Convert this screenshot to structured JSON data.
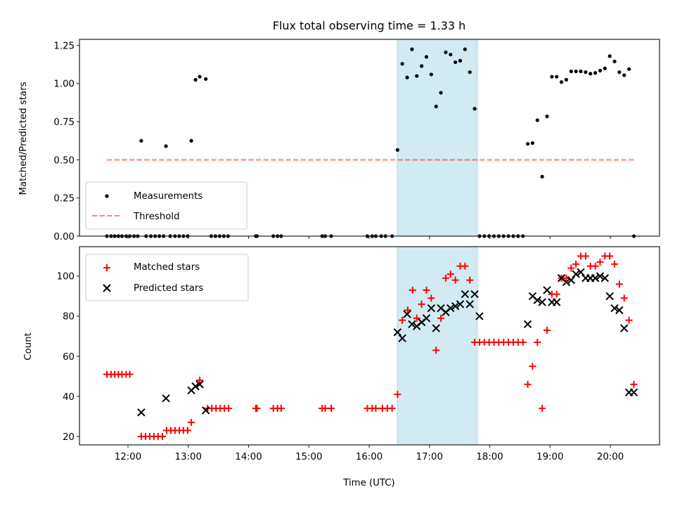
{
  "chart_data": [
    {
      "type": "scatter",
      "panel": "top",
      "title": "Flux total observing time = 1.33 h",
      "xlabel": "",
      "ylabel": "Matched/Predicted stars",
      "xlim": [
        11.195,
        20.816
      ],
      "ylim": [
        0,
        1.29
      ],
      "yticks": [
        0.0,
        0.25,
        0.5,
        0.75,
        1.0,
        1.25
      ],
      "ytick_labels": [
        "0.00",
        "0.25",
        "0.50",
        "0.75",
        "1.00",
        "1.25"
      ],
      "xticks": [
        12,
        13,
        14,
        15,
        16,
        17,
        18,
        19,
        20
      ],
      "grid": false,
      "legend_position": "lower-left",
      "shaded_region": {
        "x0": 16.466,
        "x1": 17.796,
        "color": "#add8e6"
      },
      "threshold": {
        "name": "Threshold",
        "value": 0.5,
        "x0": 11.65,
        "x1": 20.4,
        "color": "#ff0000",
        "style": "dashed"
      },
      "series": [
        {
          "name": "Measurements",
          "color": "#000000",
          "marker": "dot",
          "x": [
            11.65,
            11.72,
            11.78,
            11.84,
            11.9,
            11.97,
            12.03,
            12.1,
            12.16,
            12.22,
            12.3,
            12.38,
            12.45,
            12.52,
            12.59,
            12.63,
            12.7,
            12.78,
            12.85,
            12.92,
            12.99,
            13.05,
            13.12,
            13.19,
            13.29,
            13.38,
            13.45,
            13.52,
            13.59,
            13.66,
            14.12,
            14.14,
            14.41,
            14.48,
            14.54,
            15.22,
            15.27,
            15.37,
            15.97,
            16.05,
            16.11,
            16.2,
            16.27,
            16.38,
            16.47,
            16.55,
            16.63,
            16.71,
            16.79,
            16.87,
            16.95,
            17.03,
            17.11,
            17.19,
            17.27,
            17.35,
            17.43,
            17.51,
            17.59,
            17.67,
            17.75,
            17.83,
            17.91,
            17.99,
            18.07,
            18.15,
            18.23,
            18.31,
            18.39,
            18.47,
            18.55,
            18.63,
            18.71,
            18.79,
            18.87,
            18.95,
            19.03,
            19.11,
            19.19,
            19.27,
            19.35,
            19.43,
            19.51,
            19.59,
            19.67,
            19.75,
            19.83,
            19.91,
            19.99,
            20.07,
            20.15,
            20.23,
            20.31,
            20.39
          ],
          "y": [
            0,
            0,
            0,
            0,
            0,
            0,
            0,
            0,
            0,
            0.625,
            0,
            0,
            0,
            0,
            0,
            0.59,
            0,
            0,
            0,
            0,
            0,
            0.625,
            1.025,
            1.045,
            1.03,
            0,
            0,
            0,
            0,
            0,
            0,
            0,
            0,
            0,
            0,
            0,
            0,
            0,
            0,
            0,
            0,
            0,
            0,
            0,
            0.565,
            1.13,
            1.04,
            1.225,
            1.05,
            1.115,
            1.175,
            1.06,
            0.85,
            0.94,
            1.205,
            1.19,
            1.14,
            1.15,
            1.225,
            1.075,
            0.835,
            0,
            0,
            0,
            0,
            0,
            0,
            0,
            0,
            0,
            0,
            0.605,
            0.61,
            0.76,
            0.39,
            0.785,
            1.045,
            1.045,
            1.01,
            1.025,
            1.08,
            1.08,
            1.08,
            1.075,
            1.065,
            1.07,
            1.085,
            1.1,
            1.18,
            1.145,
            1.075,
            1.055,
            1.095,
            0
          ]
        }
      ]
    },
    {
      "type": "scatter",
      "panel": "bottom",
      "title": "",
      "xlabel": "Time (UTC)",
      "ylabel": "Count",
      "xlim": [
        11.195,
        20.816
      ],
      "ylim": [
        15.8,
        114.7
      ],
      "yticks": [
        20,
        40,
        60,
        80,
        100
      ],
      "ytick_labels": [
        "20",
        "40",
        "60",
        "80",
        "100"
      ],
      "xticks": [
        12,
        13,
        14,
        15,
        16,
        17,
        18,
        19,
        20
      ],
      "xtick_labels": [
        "12:00",
        "13:00",
        "14:00",
        "15:00",
        "16:00",
        "17:00",
        "18:00",
        "19:00",
        "20:00"
      ],
      "grid": false,
      "legend_position": "upper-left",
      "shaded_region": {
        "x0": 16.466,
        "x1": 17.796,
        "color": "#add8e6"
      },
      "series": [
        {
          "name": "Matched stars",
          "color": "#ff0000",
          "marker": "plus",
          "x": [
            11.65,
            11.72,
            11.78,
            11.84,
            11.9,
            11.97,
            12.03,
            12.22,
            12.29,
            12.36,
            12.43,
            12.5,
            12.57,
            12.64,
            12.71,
            12.78,
            12.85,
            12.92,
            12.99,
            13.05,
            13.19,
            13.32,
            13.39,
            13.46,
            13.53,
            13.6,
            13.67,
            14.12,
            14.14,
            14.41,
            14.48,
            14.54,
            15.22,
            15.27,
            15.37,
            15.97,
            16.05,
            16.11,
            16.22,
            16.3,
            16.38,
            16.47,
            16.55,
            16.64,
            16.72,
            16.79,
            16.87,
            16.95,
            17.03,
            17.11,
            17.19,
            17.27,
            17.35,
            17.43,
            17.51,
            17.59,
            17.67,
            17.75,
            17.83,
            17.91,
            17.99,
            18.07,
            18.15,
            18.23,
            18.31,
            18.39,
            18.47,
            18.55,
            18.63,
            18.71,
            18.79,
            18.87,
            18.95,
            19.03,
            19.11,
            19.19,
            19.27,
            19.35,
            19.43,
            19.51,
            19.59,
            19.67,
            19.75,
            19.83,
            19.91,
            19.99,
            20.07,
            20.15,
            20.23,
            20.31,
            20.39
          ],
          "y": [
            51,
            51,
            51,
            51,
            51,
            51,
            51,
            20,
            20,
            20,
            20,
            20,
            20,
            23,
            23,
            23,
            23,
            23,
            23,
            27,
            48,
            34,
            34,
            34,
            34,
            34,
            34,
            34,
            34,
            34,
            34,
            34,
            34,
            34,
            34,
            34,
            34,
            34,
            34,
            34,
            34,
            41,
            78,
            83,
            93,
            79,
            86,
            93,
            89,
            63,
            79,
            99,
            101,
            98,
            105,
            105,
            98,
            67,
            67,
            67,
            67,
            67,
            67,
            67,
            67,
            67,
            67,
            67,
            46,
            55,
            67,
            34,
            73,
            91,
            91,
            99,
            99,
            104,
            106,
            110,
            110,
            105,
            105,
            107,
            110,
            110,
            106,
            96,
            89,
            78,
            46
          ]
        },
        {
          "name": "Predicted stars",
          "color": "#000000",
          "marker": "x",
          "x": [
            12.22,
            12.63,
            13.05,
            13.12,
            13.19,
            13.29,
            16.47,
            16.55,
            16.63,
            16.71,
            16.79,
            16.87,
            16.95,
            17.03,
            17.11,
            17.19,
            17.27,
            17.35,
            17.43,
            17.51,
            17.59,
            17.67,
            17.75,
            17.83,
            18.63,
            18.71,
            18.79,
            18.87,
            18.95,
            19.03,
            19.11,
            19.19,
            19.27,
            19.35,
            19.43,
            19.51,
            19.59,
            19.67,
            19.75,
            19.83,
            19.91,
            19.99,
            20.07,
            20.15,
            20.23,
            20.31,
            20.39
          ],
          "y": [
            32,
            39,
            43,
            45,
            46,
            33,
            72,
            69,
            81,
            76,
            75,
            77,
            79,
            84,
            74,
            84,
            82,
            84,
            85,
            86,
            91,
            86,
            91,
            80,
            76,
            90,
            88,
            87,
            93,
            87,
            87,
            99,
            97,
            98,
            101,
            102,
            99,
            99,
            99,
            100,
            99,
            90,
            84,
            83,
            74,
            42,
            42
          ]
        }
      ]
    }
  ]
}
